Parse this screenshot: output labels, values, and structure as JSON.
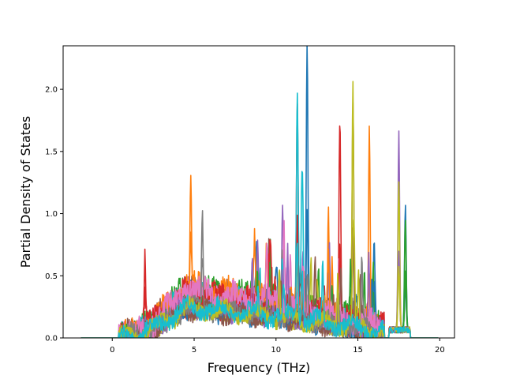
{
  "chart_data": {
    "type": "line",
    "title": "",
    "xlabel": "Frequency (THz)",
    "ylabel": "Partial Density of States",
    "xlim": [
      -3.0,
      20.9
    ],
    "ylim": [
      0.0,
      2.35
    ],
    "xticks": [
      0,
      5,
      10,
      15,
      20
    ],
    "yticks": [
      0.0,
      0.5,
      1.0,
      1.5,
      2.0
    ],
    "xtick_labels": [
      "0",
      "5",
      "10",
      "15",
      "20"
    ],
    "ytick_labels": [
      "0.0",
      "0.5",
      "1.0",
      "1.5",
      "2.0"
    ],
    "grid": false,
    "legend": "none",
    "x_start": -1.9,
    "x_end": 19.9,
    "series_colors": [
      "#1f77b4",
      "#ff7f0e",
      "#2ca02c",
      "#d62728",
      "#9467bd",
      "#8c564b",
      "#e377c2",
      "#7f7f7f",
      "#bcbd22",
      "#17becf"
    ],
    "series_count": 20,
    "peaks": [
      {
        "x": 2.0,
        "y": 0.61,
        "series": 3
      },
      {
        "x": 4.8,
        "y": 0.95,
        "series": 1
      },
      {
        "x": 5.5,
        "y": 0.82,
        "series": 7
      },
      {
        "x": 10.4,
        "y": 0.89,
        "series": 4
      },
      {
        "x": 11.3,
        "y": 1.84,
        "series": 9
      },
      {
        "x": 11.3,
        "y": 1.74,
        "series": 3
      },
      {
        "x": 11.6,
        "y": 1.22,
        "series": 9
      },
      {
        "x": 11.9,
        "y": 2.23,
        "series": 0
      },
      {
        "x": 13.2,
        "y": 0.87,
        "series": 1
      },
      {
        "x": 13.9,
        "y": 1.64,
        "series": 3
      },
      {
        "x": 14.7,
        "y": 1.83,
        "series": 5
      },
      {
        "x": 14.7,
        "y": 1.72,
        "series": 8
      },
      {
        "x": 15.7,
        "y": 1.65,
        "series": 1
      },
      {
        "x": 16.0,
        "y": 0.74,
        "series": 0
      },
      {
        "x": 17.5,
        "y": 1.6,
        "series": 4
      },
      {
        "x": 17.5,
        "y": 1.19,
        "series": 8
      },
      {
        "x": 17.9,
        "y": 1.01,
        "series": 0
      },
      {
        "x": 17.9,
        "y": 0.87,
        "series": 2
      }
    ]
  }
}
